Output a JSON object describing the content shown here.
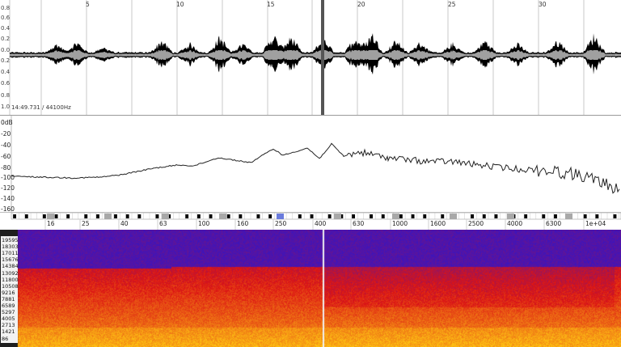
{
  "waveform": {
    "time_ticks": [
      "5",
      "10",
      "15",
      "20",
      "25",
      "30"
    ],
    "amplitude_labels": [
      "0.8",
      "0.6",
      "0.4",
      "0.2",
      "0.0",
      "0.2",
      "0.4",
      "0.6",
      "0.8",
      "1.0"
    ],
    "cursor_readout": "14:49.731 / 44100Hz",
    "colors": {
      "envelope": "#000000",
      "rms": "#a0a0a0",
      "cursor": "#555555"
    }
  },
  "spectrum": {
    "db_labels": [
      "0dB",
      "-20",
      "-40",
      "-60",
      "-80",
      "-100",
      "-120",
      "-140",
      "-160"
    ],
    "curve_color": "#222222"
  },
  "piano": {
    "freq_labels": [
      "16",
      "25",
      "40",
      "63",
      "100",
      "160",
      "250",
      "400",
      "630",
      "1000",
      "1600",
      "2500",
      "4000",
      "6300",
      "1e+04"
    ],
    "highlight_color": "#6a7bdc"
  },
  "spectrogram": {
    "freq_labels": [
      "19595",
      "18303",
      "17011",
      "15676",
      "14384",
      "13092",
      "11800",
      "10508",
      "9216",
      "7881",
      "6589",
      "5297",
      "4005",
      "2713",
      "1421",
      "86"
    ],
    "colors": {
      "low": "#f8b020",
      "mid": "#d81818",
      "high": "#2020d8"
    }
  }
}
